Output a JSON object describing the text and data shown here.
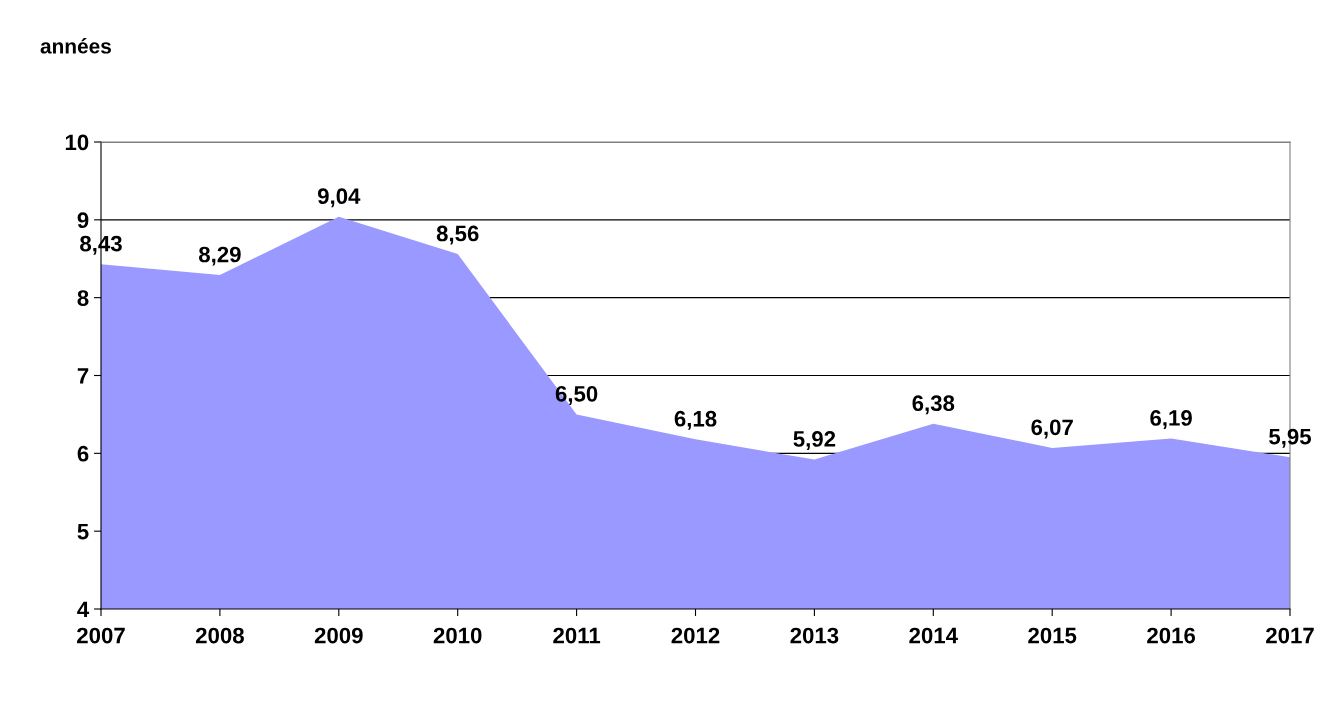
{
  "chart_data": {
    "type": "area",
    "ylabel": "années",
    "categories": [
      "2007",
      "2008",
      "2009",
      "2010",
      "2011",
      "2012",
      "2013",
      "2014",
      "2015",
      "2016",
      "2017"
    ],
    "values": [
      8.43,
      8.29,
      9.04,
      8.56,
      6.5,
      6.18,
      5.92,
      6.38,
      6.07,
      6.19,
      5.95
    ],
    "value_labels": [
      "8,43",
      "8,29",
      "9,04",
      "8,56",
      "6,50",
      "6,18",
      "5,92",
      "6,38",
      "6,07",
      "6,19",
      "5,95"
    ],
    "color": "#9999ff",
    "ylim": [
      4,
      10
    ],
    "yticks": [
      4,
      5,
      6,
      7,
      8,
      9,
      10
    ],
    "grid": "y",
    "legend": false
  }
}
